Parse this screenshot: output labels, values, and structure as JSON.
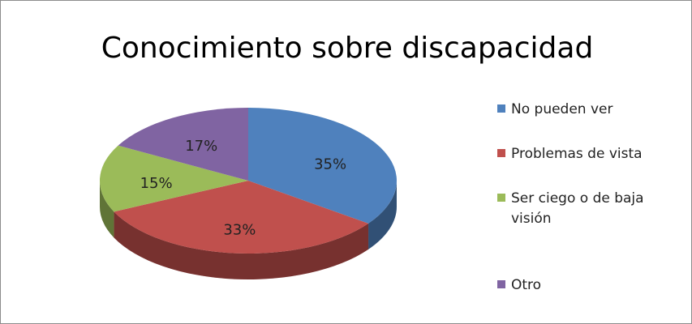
{
  "chart_data": {
    "type": "pie",
    "title": "Conocimiento sobre discapacidad",
    "categories": [
      "No pueden ver",
      "Problemas de vista",
      "Ser ciego o de baja visión",
      "Otro"
    ],
    "values": [
      35,
      33,
      15,
      17
    ],
    "value_labels": [
      "35%",
      "33%",
      "15%",
      "17%"
    ],
    "colors": [
      "#4f81bd",
      "#c0504d",
      "#9bbb59",
      "#8064a2"
    ],
    "legend": "right"
  }
}
